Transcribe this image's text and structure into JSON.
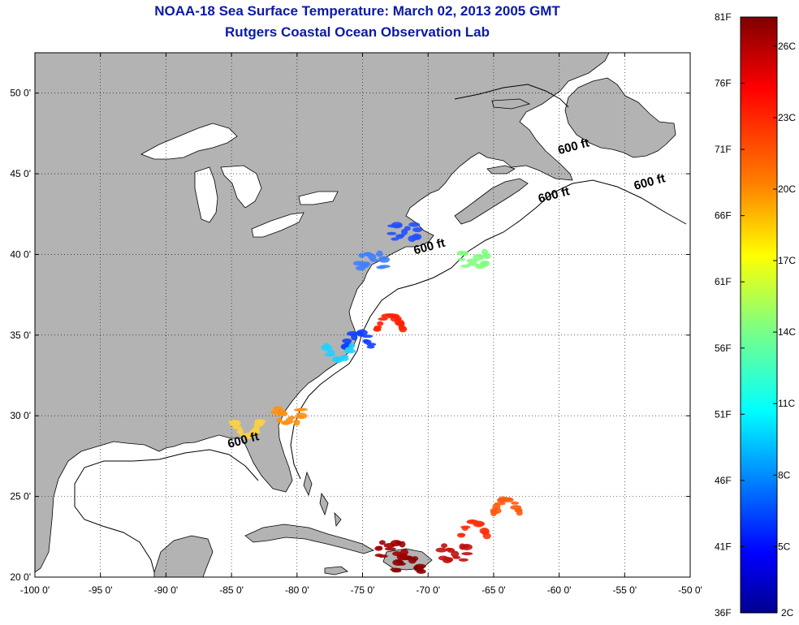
{
  "title": {
    "line1": "NOAA-18 Sea Surface Temperature:  March 02, 2013 2005 GMT",
    "line2": "Rutgers Coastal Ocean Observation Lab"
  },
  "map": {
    "lon_ticks": [
      -100,
      -95,
      -90,
      -85,
      -80,
      -75,
      -70,
      -65,
      -60,
      -55,
      -50
    ],
    "lat_ticks": [
      20,
      25,
      30,
      35,
      40,
      45,
      50
    ],
    "lon_tick_labels": [
      "-100 0'",
      "-95 0'",
      "-90 0'",
      "-85 0'",
      "-80 0'",
      "-75 0'",
      "-70 0'",
      "-65 0'",
      "-60 0'",
      "-55 0'",
      "-50 0'"
    ],
    "lat_tick_labels": [
      "20 0'",
      "25 0'",
      "30 0'",
      "35 0'",
      "40 0'",
      "45 0'",
      "50 0'"
    ],
    "lon_range": [
      -100,
      -50
    ],
    "lat_range": [
      20,
      52.5
    ],
    "grid": "dotted",
    "land_color": "#b3b3b3",
    "ocean_color": "#ffffff",
    "isobath_labels": [
      {
        "text": "600 ft",
        "lon": -60,
        "lat": 46.2
      },
      {
        "text": "600 ft",
        "lon": -54.2,
        "lat": 44.0
      },
      {
        "text": "600 ft",
        "lon": -61.5,
        "lat": 43.2
      },
      {
        "text": "600 ft",
        "lon": -71.0,
        "lat": 40.0
      },
      {
        "text": "600 ft",
        "lon": -85.2,
        "lat": 28.0
      }
    ]
  },
  "colorbar": {
    "top_label_f": "81F",
    "bottom_label_f": "36F",
    "bottom_label_c": "2C",
    "f_labels": [
      "76F",
      "71F",
      "66F",
      "61F",
      "56F",
      "51F",
      "46F",
      "41F"
    ],
    "c_labels": [
      "26C",
      "23C",
      "20C",
      "17C",
      "14C",
      "11C",
      "8C",
      "5C"
    ],
    "colors": [
      "#7f0000",
      "#ff0000",
      "#ff8000",
      "#ffff00",
      "#80ff80",
      "#00ffff",
      "#0080ff",
      "#0000ff",
      "#00008f"
    ]
  },
  "sst_patches": [
    {
      "lon": -72.9,
      "lat": 35.8,
      "color": "#ff2000"
    },
    {
      "lon": -75.3,
      "lat": 34.7,
      "color": "#1040ff"
    },
    {
      "lon": -76.8,
      "lat": 33.9,
      "color": "#20d0ff"
    },
    {
      "lon": -80.6,
      "lat": 30.0,
      "color": "#ff9010"
    },
    {
      "lon": -83.8,
      "lat": 29.2,
      "color": "#ffd040"
    },
    {
      "lon": -66.5,
      "lat": 39.7,
      "color": "#80ff80"
    },
    {
      "lon": -74.3,
      "lat": 39.6,
      "color": "#4080ff"
    },
    {
      "lon": -71.8,
      "lat": 41.4,
      "color": "#2050ff"
    },
    {
      "lon": -64.0,
      "lat": 24.4,
      "color": "#ff5a10"
    },
    {
      "lon": -68.0,
      "lat": 21.5,
      "color": "#c01010"
    },
    {
      "lon": -71.5,
      "lat": 20.8,
      "color": "#8a0000"
    },
    {
      "lon": -72.8,
      "lat": 21.7,
      "color": "#a00000"
    },
    {
      "lon": -66.5,
      "lat": 23.0,
      "color": "#ff3010"
    }
  ]
}
